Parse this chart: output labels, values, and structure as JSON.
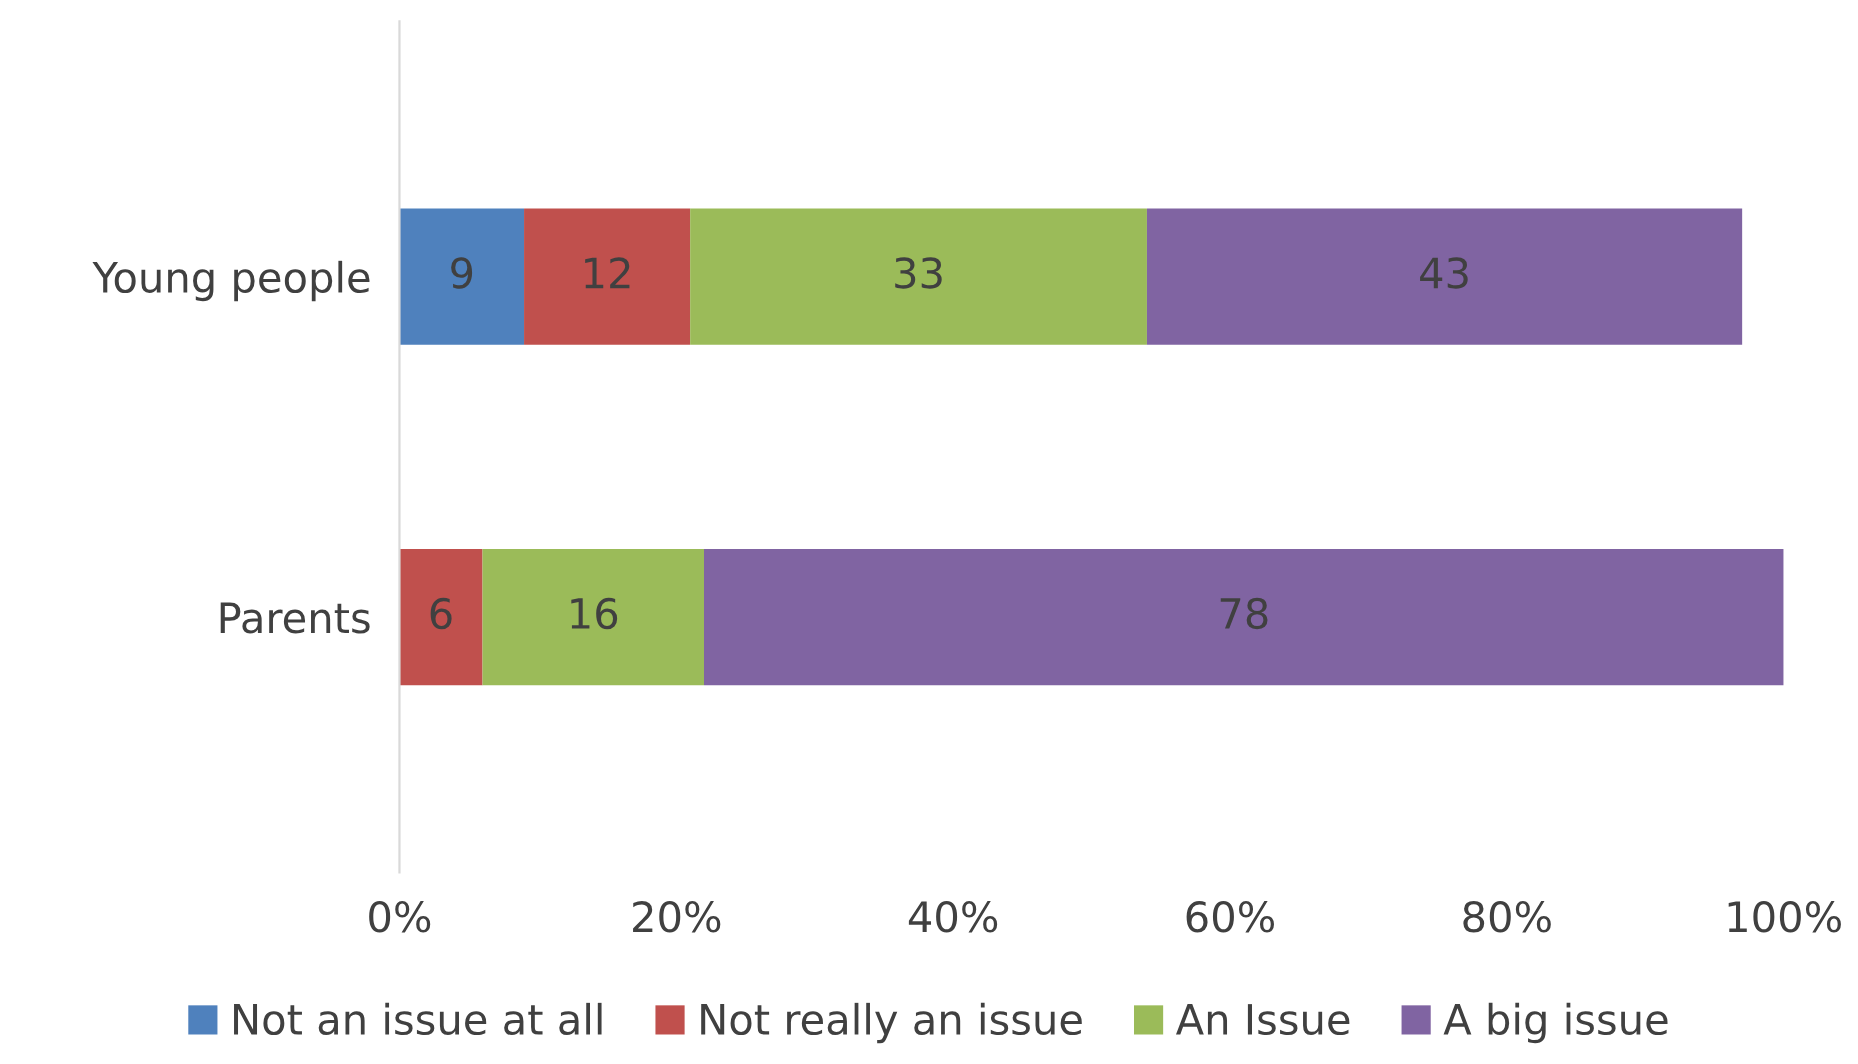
{
  "chart_data": {
    "type": "bar",
    "orientation": "horizontal",
    "stacked": true,
    "categories": [
      "Young people",
      "Parents"
    ],
    "series": [
      {
        "name": "Not an issue at all",
        "color": "#4f81bd",
        "values": [
          9,
          null
        ]
      },
      {
        "name": "Not really an issue",
        "color": "#c0504d",
        "values": [
          12,
          6
        ]
      },
      {
        "name": "An Issue",
        "color": "#9bbb59",
        "values": [
          33,
          16
        ]
      },
      {
        "name": "A big issue",
        "color": "#8064a2",
        "values": [
          43,
          78
        ]
      }
    ],
    "xlim": [
      0,
      100
    ],
    "xticks": [
      {
        "value": 0,
        "label": "0%"
      },
      {
        "value": 20,
        "label": "20%"
      },
      {
        "value": 40,
        "label": "40%"
      },
      {
        "value": 60,
        "label": "60%"
      },
      {
        "value": 80,
        "label": "80%"
      },
      {
        "value": 100,
        "label": "100%"
      }
    ],
    "data_labels": true,
    "grid": false,
    "legend": "bottom"
  }
}
